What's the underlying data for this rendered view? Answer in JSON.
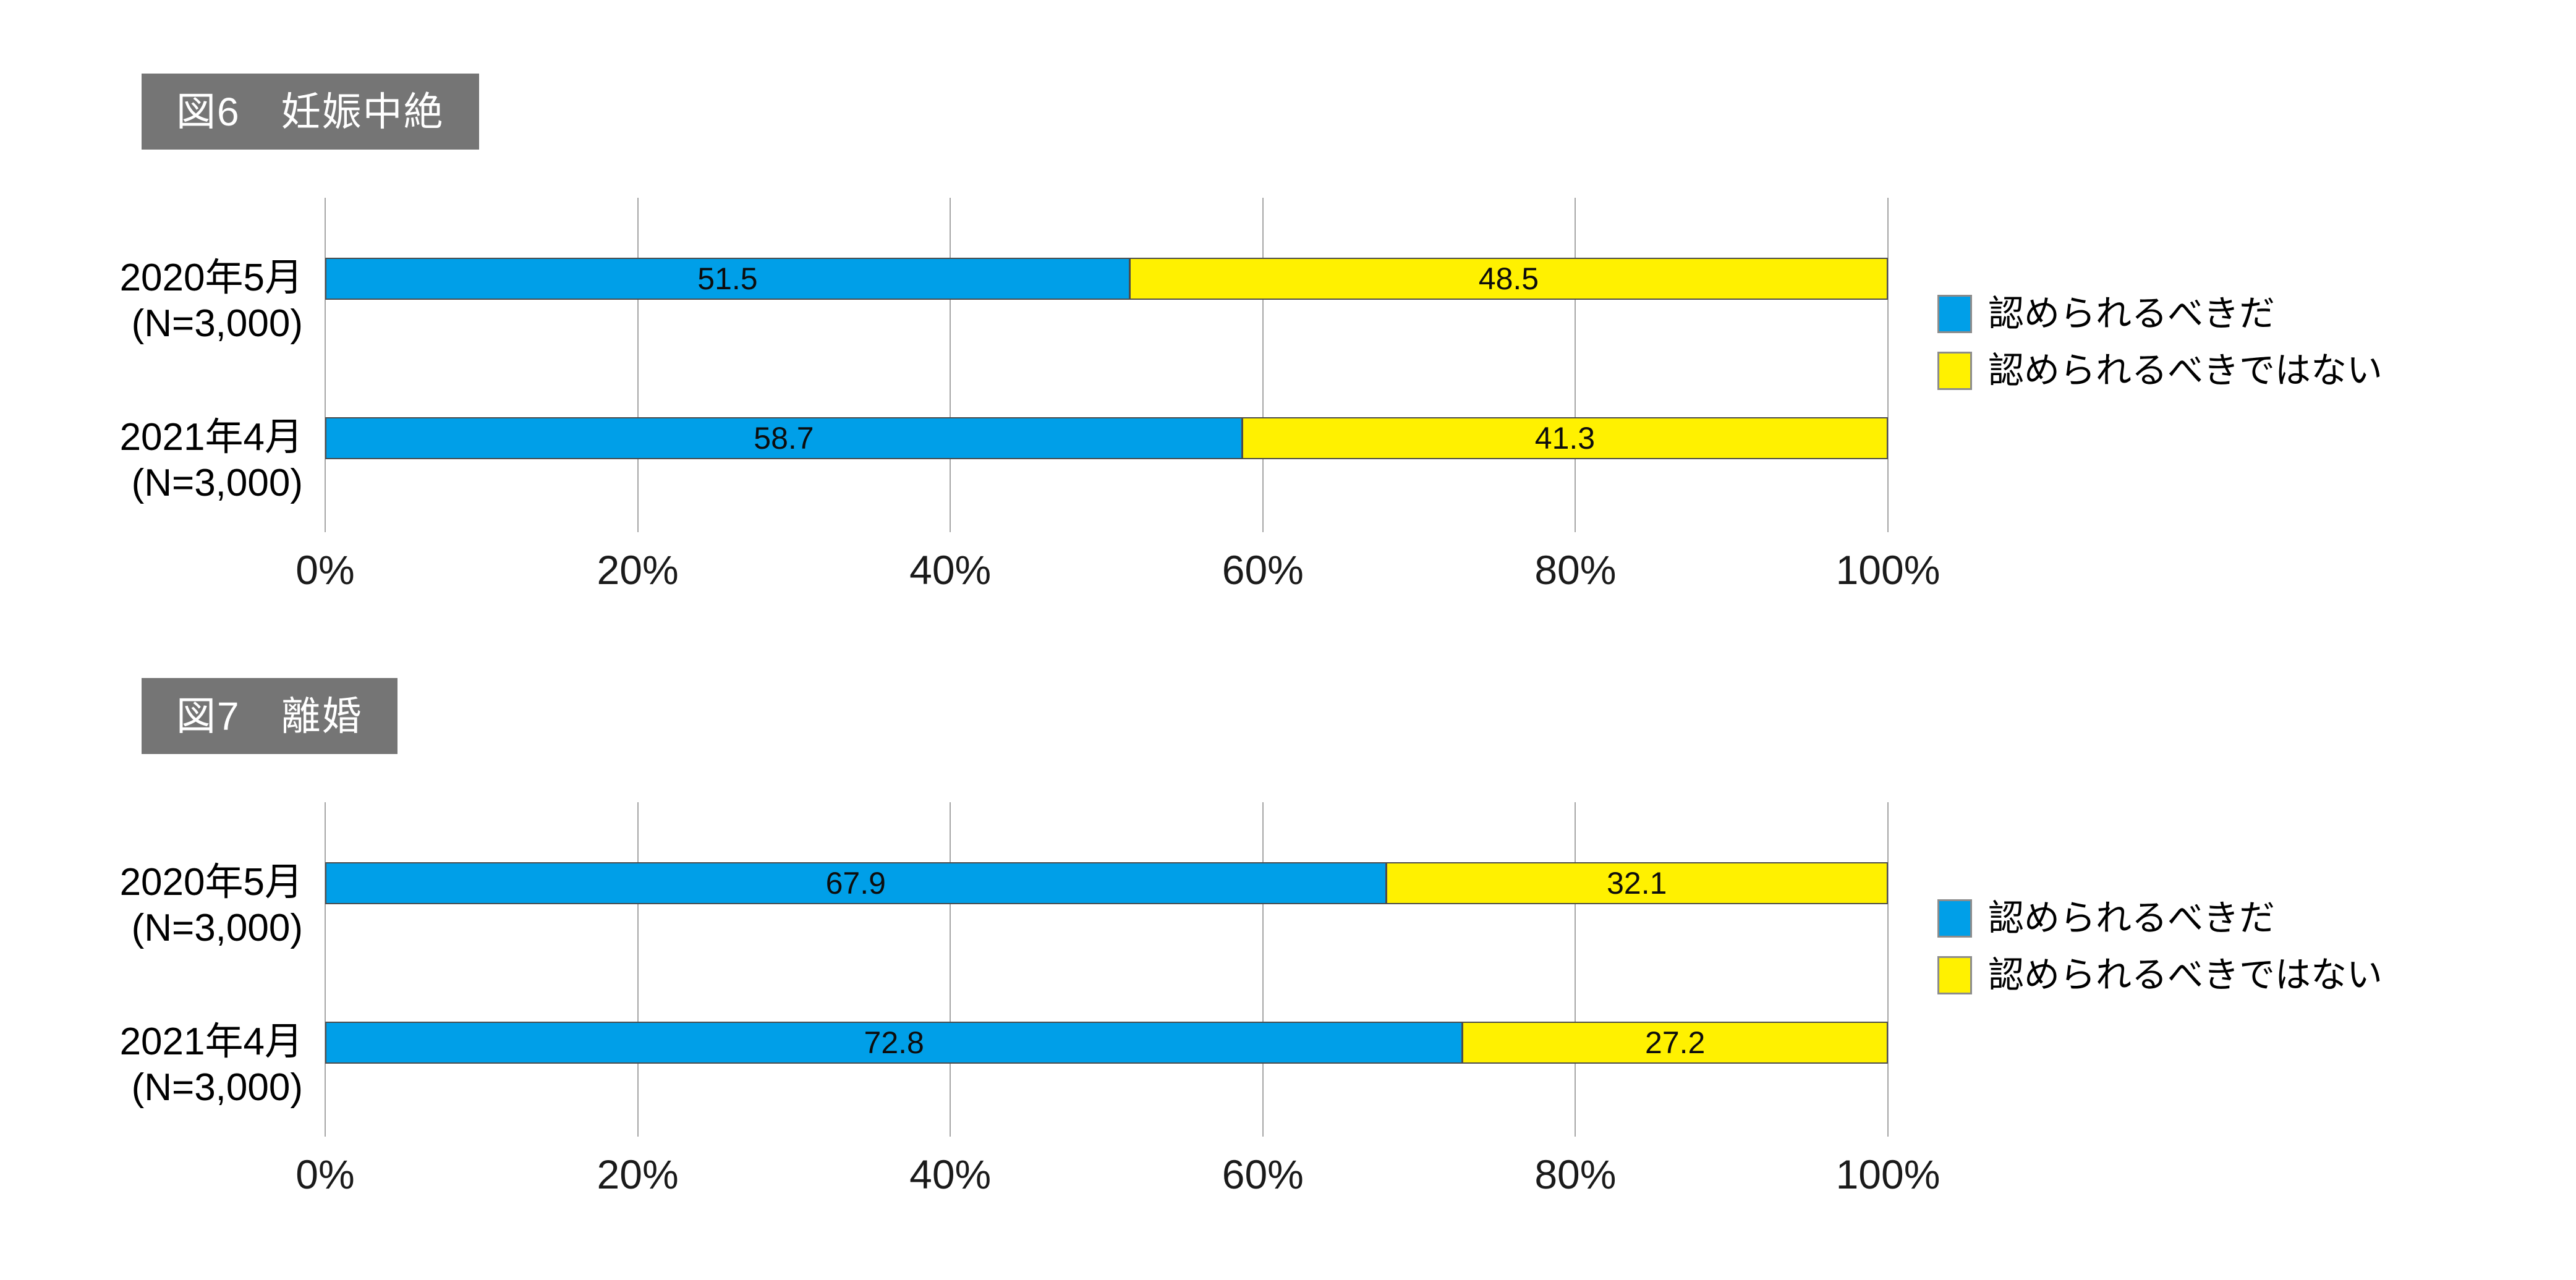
{
  "colors": {
    "blue": "#009FE8",
    "yellow": "#FFF100",
    "title_bg": "#757575",
    "title_text": "#FFFFFF",
    "bar_border": "#4C4C4C",
    "gridline": "#A6A6A6",
    "text": "#000000"
  },
  "axis": {
    "ticks": [
      "0%",
      "20%",
      "40%",
      "60%",
      "80%",
      "100%"
    ]
  },
  "legend": {
    "items": [
      {
        "label": "認められるべきだ",
        "color": "#009FE8"
      },
      {
        "label": "認められるべきではない",
        "color": "#FFF100"
      }
    ]
  },
  "charts": [
    {
      "title": "図6　妊娠中絶",
      "rows": [
        {
          "label1": "2020年5月",
          "label2": "(N=3,000)",
          "segments": [
            {
              "value": 51.5,
              "label": "51.5"
            },
            {
              "value": 48.5,
              "label": "48.5"
            }
          ]
        },
        {
          "label1": "2021年4月",
          "label2": "(N=3,000)",
          "segments": [
            {
              "value": 58.7,
              "label": "58.7"
            },
            {
              "value": 41.3,
              "label": "41.3"
            }
          ]
        }
      ]
    },
    {
      "title": "図7　離婚",
      "rows": [
        {
          "label1": "2020年5月",
          "label2": "(N=3,000)",
          "segments": [
            {
              "value": 67.9,
              "label": "67.9"
            },
            {
              "value": 32.1,
              "label": "32.1"
            }
          ]
        },
        {
          "label1": "2021年4月",
          "label2": "(N=3,000)",
          "segments": [
            {
              "value": 72.8,
              "label": "72.8"
            },
            {
              "value": 27.2,
              "label": "27.2"
            }
          ]
        }
      ]
    }
  ],
  "chart_data": [
    {
      "type": "bar",
      "orientation": "horizontal",
      "stacked": true,
      "title": "図6　妊娠中絶",
      "categories": [
        "2020年5月 (N=3,000)",
        "2021年4月 (N=3,000)"
      ],
      "series": [
        {
          "name": "認められるべきだ",
          "values": [
            51.5,
            58.7
          ],
          "color": "#009FE8"
        },
        {
          "name": "認められるべきではない",
          "values": [
            48.5,
            41.3
          ],
          "color": "#FFF100"
        }
      ],
      "xlabel": "",
      "ylabel": "",
      "xlim": [
        0,
        100
      ],
      "x_tick_labels": [
        "0%",
        "20%",
        "40%",
        "60%",
        "80%",
        "100%"
      ],
      "grid": true,
      "legend_position": "right",
      "value_labels": "centered-in-segment"
    },
    {
      "type": "bar",
      "orientation": "horizontal",
      "stacked": true,
      "title": "図7　離婚",
      "categories": [
        "2020年5月 (N=3,000)",
        "2021年4月 (N=3,000)"
      ],
      "series": [
        {
          "name": "認められるべきだ",
          "values": [
            67.9,
            72.8
          ],
          "color": "#009FE8"
        },
        {
          "name": "認められるべきではない",
          "values": [
            32.1,
            27.2
          ],
          "color": "#FFF100"
        }
      ],
      "xlabel": "",
      "ylabel": "",
      "xlim": [
        0,
        100
      ],
      "x_tick_labels": [
        "0%",
        "20%",
        "40%",
        "60%",
        "80%",
        "100%"
      ],
      "grid": true,
      "legend_position": "right",
      "value_labels": "centered-in-segment"
    }
  ]
}
